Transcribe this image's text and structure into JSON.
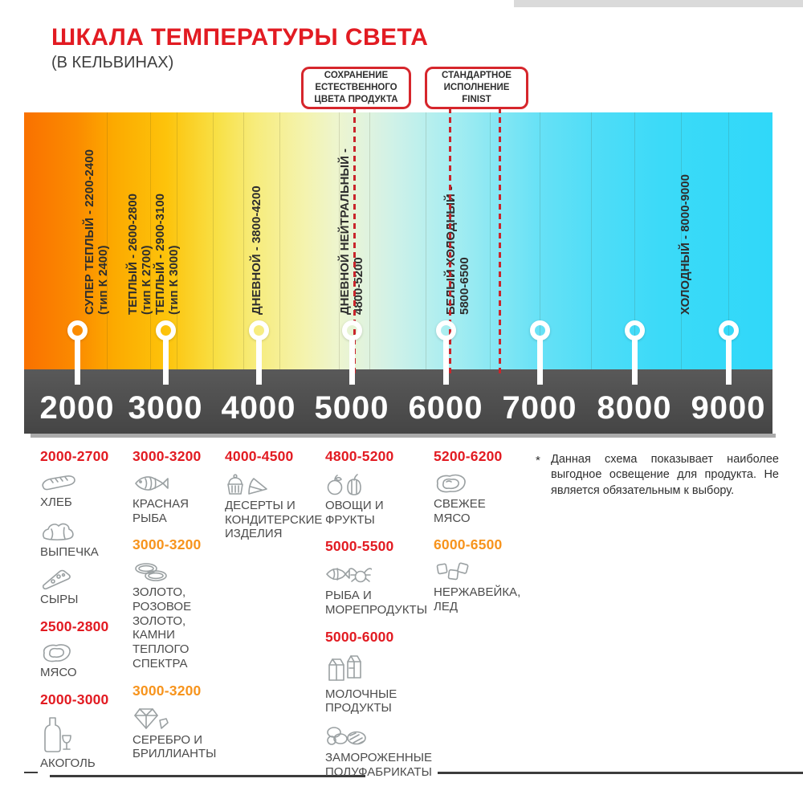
{
  "header": {
    "title": "ШКАЛА ТЕМПЕРАТУРЫ СВЕТА",
    "subtitle": "(В КЕЛЬВИНАХ)"
  },
  "callouts": [
    {
      "lines": [
        "СОХРАНЕНИЕ",
        "ЕСТЕСТВЕННОГО",
        "ЦВЕТА ПРОДУКТА"
      ]
    },
    {
      "lines": [
        "СТАНДАРТНОЕ",
        "ИСПОЛНЕНИЕ",
        "FINIST"
      ]
    }
  ],
  "scale": {
    "unit": "K",
    "min": 2000,
    "max": 9000,
    "ticks": [
      "2000",
      "3000",
      "4000",
      "5000",
      "6000",
      "7000",
      "8000",
      "9000"
    ],
    "zones": [
      {
        "lines": [
          "СУПЕР ТЕПЛЫЙ - 2200-2400",
          "(тип К 2400)"
        ]
      },
      {
        "lines": [
          "ТЕПЛЫЙ - 2600-2800",
          "(тип К 2700)"
        ]
      },
      {
        "lines": [
          "ТЕПЛЫЙ - 2900-3100",
          "(тип К 3000)"
        ]
      },
      {
        "lines": [
          "ДНЕВНОЙ - 3800-4200"
        ]
      },
      {
        "lines": [
          "ДНЕВНОЙ НЕЙТРАЛЬНЫЙ -",
          "4800-5200"
        ]
      },
      {
        "lines": [
          "БЕЛЫЙ ХОЛОДНЫЙ -",
          "5800-6500"
        ]
      },
      {
        "lines": [
          "ХОЛОДНЫЙ - 8000-9000"
        ]
      }
    ]
  },
  "food": {
    "columns": [
      {
        "groups": [
          {
            "range": "2000-2700",
            "color": "red",
            "entries": [
              {
                "icon": "bread-icon",
                "lines": [
                  "ХЛЕБ"
                ]
              },
              {
                "icon": "croissant-icon",
                "lines": [
                  "ВЫПЕЧКА"
                ]
              },
              {
                "icon": "cheese-icon",
                "lines": [
                  "СЫРЫ"
                ]
              }
            ]
          },
          {
            "range": "2500-2800",
            "color": "red",
            "entries": [
              {
                "icon": "meat-icon",
                "lines": [
                  "МЯСО"
                ]
              }
            ]
          },
          {
            "range": "2000-3000",
            "color": "red",
            "entries": [
              {
                "icon": "alcohol-icon",
                "lines": [
                  "АКОГОЛЬ"
                ]
              }
            ]
          }
        ]
      },
      {
        "groups": [
          {
            "range": "3000-3200",
            "color": "red",
            "entries": [
              {
                "icon": "fish-icon",
                "lines": [
                  "КРАСНАЯ",
                  "РЫБА"
                ]
              }
            ]
          },
          {
            "range": "3000-3200",
            "color": "orange",
            "entries": [
              {
                "icon": "rings-icon",
                "lines": [
                  "ЗОЛОТО,",
                  "РОЗОВОЕ ЗОЛОТО,",
                  "КАМНИ ТЕПЛОГО",
                  "СПЕКТРА"
                ]
              }
            ]
          },
          {
            "range": "3000-3200",
            "color": "orange",
            "entries": [
              {
                "icon": "diamond-icon",
                "lines": [
                  "СЕРЕБРО И",
                  "БРИЛЛИАНТЫ"
                ]
              }
            ]
          }
        ]
      },
      {
        "groups": [
          {
            "range": "4000-4500",
            "color": "red",
            "entries": [
              {
                "icon": "dessert-icon",
                "lines": [
                  "ДЕСЕРТЫ И",
                  "КОНДИТЕРСКИЕ",
                  "ИЗДЕЛИЯ"
                ]
              }
            ]
          }
        ]
      },
      {
        "groups": [
          {
            "range": "4800-5200",
            "color": "red",
            "entries": [
              {
                "icon": "fruits-vegetables-icon",
                "lines": [
                  "ОВОЩИ И",
                  "ФРУКТЫ"
                ]
              }
            ]
          },
          {
            "range": "5000-5500",
            "color": "red",
            "entries": [
              {
                "icon": "seafood-icon",
                "lines": [
                  "РЫБА И",
                  "МОРЕПРОДУКТЫ"
                ]
              }
            ]
          },
          {
            "range": "5000-6000",
            "color": "red",
            "entries": [
              {
                "icon": "dairy-icon",
                "lines": [
                  "МОЛОЧНЫЕ ПРОДУКТЫ"
                ]
              },
              {
                "icon": "frozen-food-icon",
                "lines": [
                  "ЗАМОРОЖЕННЫЕ",
                  "ПОЛУФАБРИКАТЫ"
                ]
              }
            ]
          }
        ]
      },
      {
        "groups": [
          {
            "range": "5200-6200",
            "color": "red",
            "entries": [
              {
                "icon": "fresh-meat-icon",
                "lines": [
                  "СВЕЖЕЕ",
                  "МЯСО"
                ]
              }
            ]
          },
          {
            "range": "6000-6500",
            "color": "orange",
            "entries": [
              {
                "icon": "ice-icon",
                "lines": [
                  "НЕРЖАВЕЙКА,",
                  "ЛЕД"
                ]
              }
            ]
          }
        ]
      }
    ],
    "note": {
      "marker": "*",
      "text": "Данная схема показывает наиболее выгодное освещение для продукта. Не является обязательным к выбору."
    }
  },
  "colors": {
    "red": "#e21b22",
    "orange": "#f7941d",
    "dashed_red": "#c9252b",
    "scale_bar": "#4b4b4b",
    "label_gray": "#4c4c4c",
    "icon_gray": "#9aa0a2"
  }
}
